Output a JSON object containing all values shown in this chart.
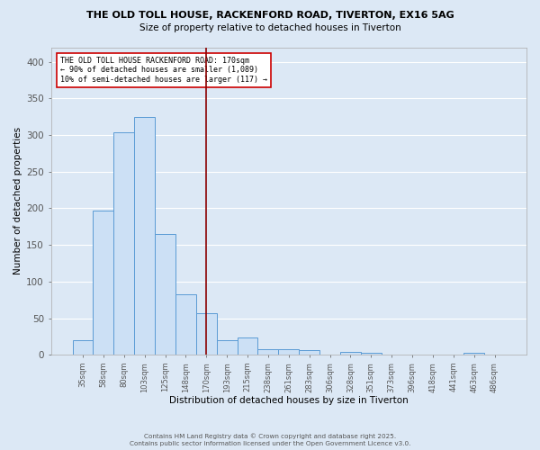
{
  "title_line1": "THE OLD TOLL HOUSE, RACKENFORD ROAD, TIVERTON, EX16 5AG",
  "title_line2": "Size of property relative to detached houses in Tiverton",
  "xlabel": "Distribution of detached houses by size in Tiverton",
  "ylabel": "Number of detached properties",
  "bar_labels": [
    "35sqm",
    "58sqm",
    "80sqm",
    "103sqm",
    "125sqm",
    "148sqm",
    "170sqm",
    "193sqm",
    "215sqm",
    "238sqm",
    "261sqm",
    "283sqm",
    "306sqm",
    "328sqm",
    "351sqm",
    "373sqm",
    "396sqm",
    "418sqm",
    "441sqm",
    "463sqm",
    "486sqm"
  ],
  "bar_values": [
    20,
    197,
    304,
    325,
    165,
    82,
    57,
    20,
    24,
    8,
    7,
    6,
    0,
    4,
    3,
    0,
    0,
    0,
    0,
    3,
    0
  ],
  "bar_color_fill": "#cce0f5",
  "bar_color_edge": "#5b9bd5",
  "vline_x": 6,
  "vline_color": "#8b0000",
  "annotation_text": "THE OLD TOLL HOUSE RACKENFORD ROAD: 170sqm\n← 90% of detached houses are smaller (1,089)\n10% of semi-detached houses are larger (117) →",
  "annotation_box_color": "#ffffff",
  "annotation_box_edge": "#cc0000",
  "ylim": [
    0,
    420
  ],
  "yticks": [
    0,
    50,
    100,
    150,
    200,
    250,
    300,
    350,
    400
  ],
  "background_color": "#dce8f5",
  "grid_color": "#ffffff",
  "footer_line1": "Contains HM Land Registry data © Crown copyright and database right 2025.",
  "footer_line2": "Contains public sector information licensed under the Open Government Licence v3.0."
}
